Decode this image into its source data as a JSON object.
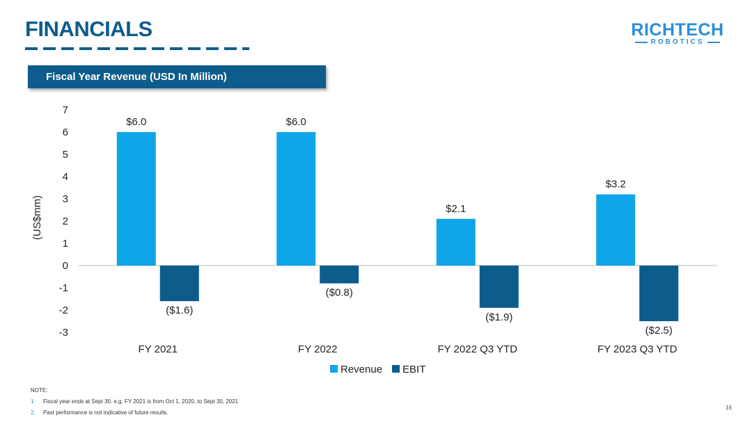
{
  "header": {
    "title": "FINANCIALS",
    "logo_word": "RICHTECH",
    "logo_sub": "ROBOTICS"
  },
  "banner": {
    "title": "Fiscal Year Revenue (USD In Million)"
  },
  "chart_data": {
    "type": "bar",
    "title": "Fiscal Year Revenue (USD In Million)",
    "xlabel": "",
    "ylabel": "(US$mm)",
    "categories": [
      "FY 2021",
      "FY 2022",
      "FY 2022 Q3 YTD",
      "FY 2023 Q3 YTD"
    ],
    "series": [
      {
        "name": "Revenue",
        "values": [
          6.0,
          6.0,
          2.1,
          3.2
        ],
        "labels": [
          "$6.0",
          "$6.0",
          "$2.1",
          "$3.2"
        ],
        "color": "#0ea5e9"
      },
      {
        "name": "EBIT",
        "values": [
          -1.6,
          -0.8,
          -1.9,
          -2.5
        ],
        "labels": [
          "($1.6)",
          "($0.8)",
          "($1.9)",
          "($2.5)"
        ],
        "color": "#0d5c8c"
      }
    ],
    "ylim": [
      -3,
      7
    ],
    "yticks": [
      7,
      6,
      5,
      4,
      3,
      2,
      1,
      0,
      -1,
      -2,
      -3
    ],
    "grid": false,
    "legend_position": "bottom"
  },
  "notes": {
    "heading": "NOTE:",
    "items": [
      {
        "number": "1.",
        "text": "Fiscal year ends at Sept 30. e.g.  FY 2021 is from Oct 1, 2020, to Sept 30, 2021"
      },
      {
        "number": "2.",
        "text": "Past performance is not indicative of future results."
      }
    ]
  },
  "page_number": "16",
  "colors": {
    "brand": "#0d5c8c",
    "accent": "#0ea5e9",
    "logo": "#2a8fd8"
  }
}
